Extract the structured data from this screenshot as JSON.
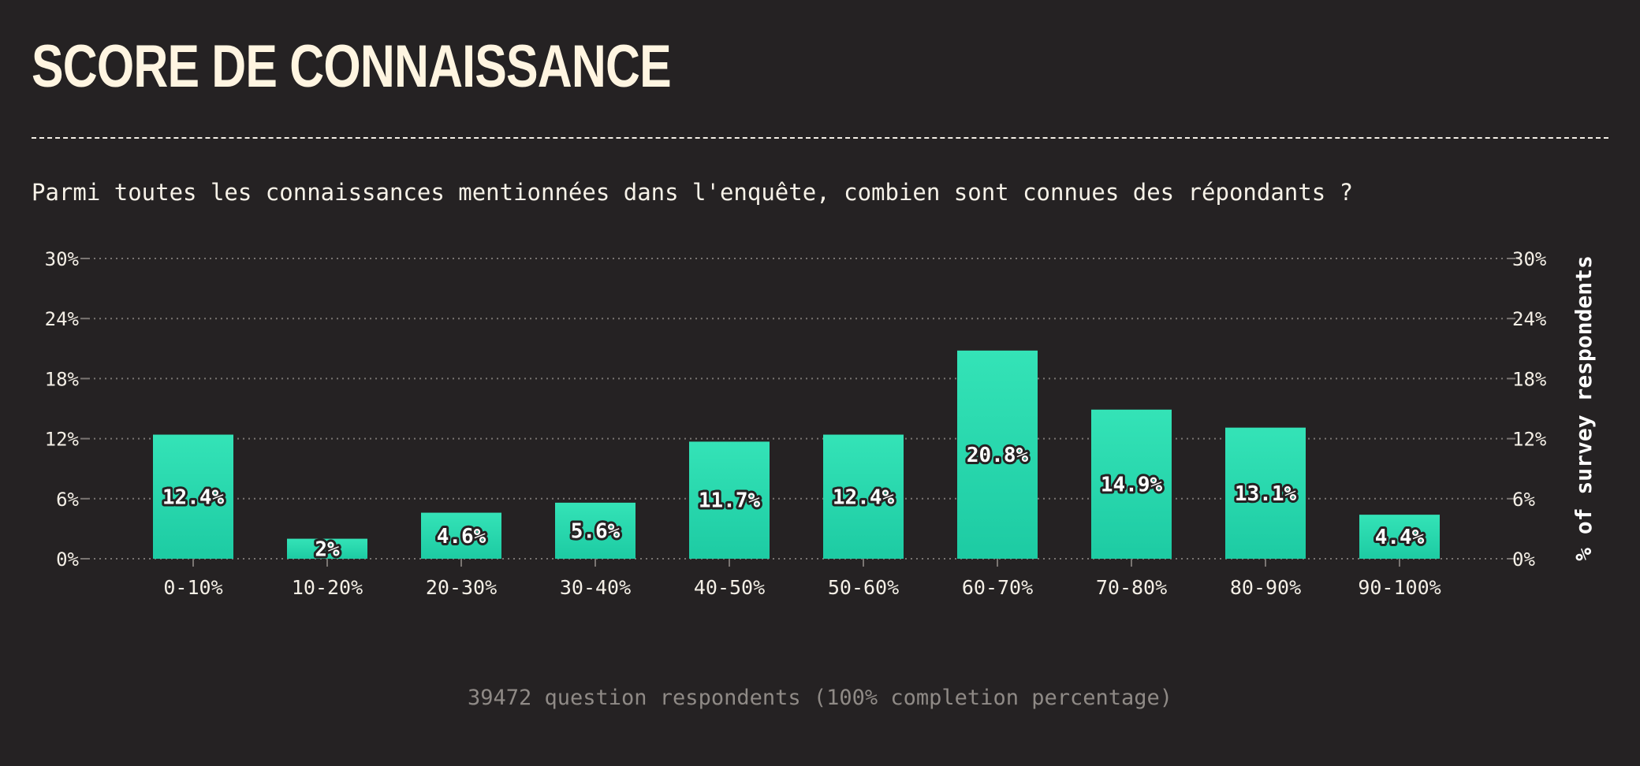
{
  "title": "SCORE DE CONNAISSANCE",
  "question": "Parmi toutes les connaissances mentionnées dans l'enquête, combien sont connues des répondants ?",
  "footer": "39472 question respondents (100% completion percentage)",
  "colors": {
    "background": "#252223",
    "bar_top": "#34e3b7",
    "bar_bottom": "#1dcba3",
    "text": "#f4efe6",
    "grid": "#7a7572"
  },
  "chart_data": {
    "type": "bar",
    "categories": [
      "0-10%",
      "10-20%",
      "20-30%",
      "30-40%",
      "40-50%",
      "50-60%",
      "60-70%",
      "70-80%",
      "80-90%",
      "90-100%"
    ],
    "values": [
      12.4,
      2,
      4.6,
      5.6,
      11.7,
      12.4,
      20.8,
      14.9,
      13.1,
      4.4
    ],
    "value_labels": [
      "12.4%",
      "2%",
      "4.6%",
      "5.6%",
      "11.7%",
      "12.4%",
      "20.8%",
      "14.9%",
      "13.1%",
      "4.4%"
    ],
    "ylim": [
      0,
      30
    ],
    "yticks": [
      0,
      6,
      12,
      18,
      24,
      30
    ],
    "ytick_labels": [
      "0%",
      "6%",
      "12%",
      "18%",
      "24%",
      "30%"
    ],
    "ylabel": "% of survey respondents",
    "grid": true,
    "dual_y_axis": true
  }
}
